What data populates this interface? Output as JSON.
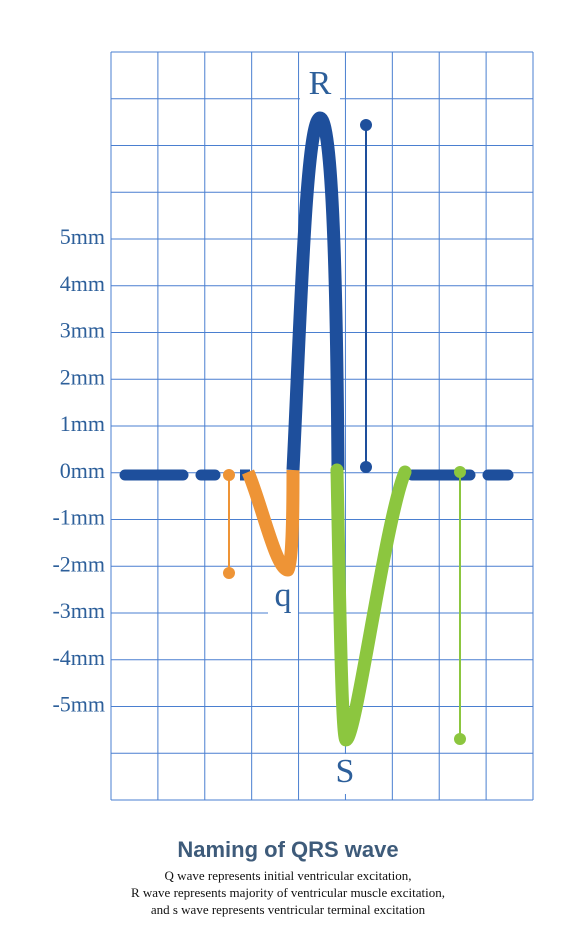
{
  "y_labels": [
    "5mm",
    "4mm",
    "3mm",
    "2mm",
    "1mm",
    "0mm",
    "-1mm",
    "-2mm",
    "-3mm",
    "-4mm",
    "-5mm"
  ],
  "waves": {
    "r": "R",
    "q": "q",
    "s": "S"
  },
  "title": "Naming of QRS wave",
  "description": [
    "Q wave represents initial ventricular excitation,",
    "R wave represents majority of ventricular muscle excitation,",
    "and s wave represents ventricular terminal excitation"
  ]
}
